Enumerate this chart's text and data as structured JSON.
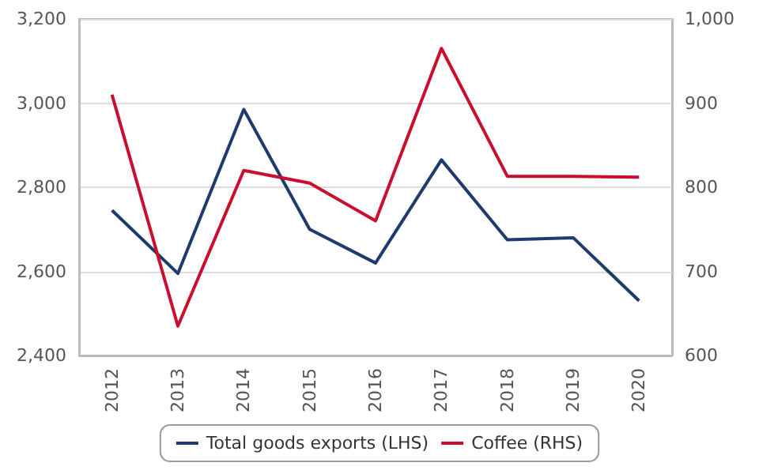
{
  "chart_data": {
    "type": "line",
    "categories": [
      "2012",
      "2013",
      "2014",
      "2015",
      "2016",
      "2017",
      "2018",
      "2019",
      "2020"
    ],
    "series": [
      {
        "name": "Total goods exports (LHS)",
        "color": "#1f3b6e",
        "values": [
          2745,
          2595,
          2985,
          2700,
          2620,
          2865,
          2675,
          2680,
          2530
        ]
      },
      {
        "name": "Coffee (RHS)",
        "color": "#c8102e",
        "axis": "y2",
        "values": [
          910,
          635,
          820,
          805,
          760,
          965,
          813,
          813,
          812
        ]
      }
    ],
    "ylim": [
      2400,
      3200
    ],
    "yticks": [
      {
        "value": 2400,
        "label": "2,400"
      },
      {
        "value": 2600,
        "label": "2,600"
      },
      {
        "value": 2800,
        "label": "2,800"
      },
      {
        "value": 3000,
        "label": "3,000"
      },
      {
        "value": 3200,
        "label": "3,200"
      }
    ],
    "y2lim": [
      600,
      1000
    ],
    "y2ticks": [
      600,
      700,
      800,
      900,
      {
        "value": 1000,
        "label": "1,000"
      }
    ],
    "grid": "y",
    "legend": "bottom",
    "marker": "none",
    "line_style": "solid"
  }
}
